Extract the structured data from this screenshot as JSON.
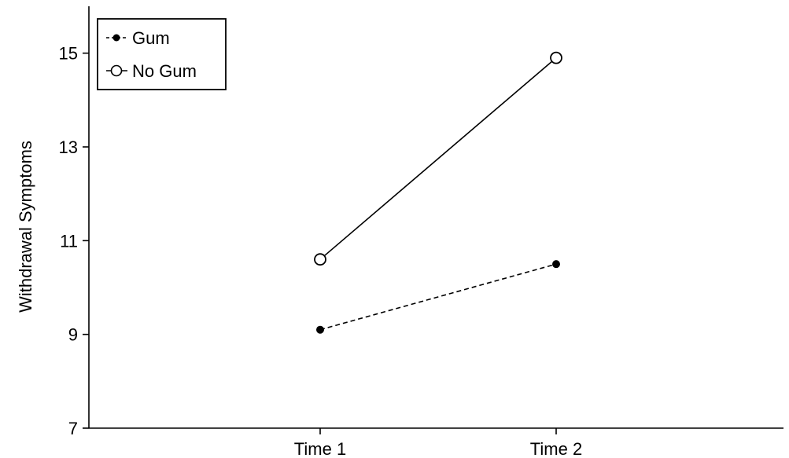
{
  "chart_data": {
    "type": "line",
    "title": "",
    "xlabel": "",
    "ylabel": "Withdrawal Symptoms",
    "categories": [
      "Time 1",
      "Time 2"
    ],
    "ylim": [
      7,
      16
    ],
    "yticks": [
      7,
      9,
      11,
      13,
      15
    ],
    "grid": false,
    "legend_position": "top-left",
    "series": [
      {
        "name": "Gum",
        "values": [
          9.1,
          10.5
        ],
        "marker": "filled-circle",
        "line_style": "dashed",
        "color": "#000000"
      },
      {
        "name": "No Gum",
        "values": [
          10.6,
          14.9
        ],
        "marker": "open-circle",
        "line_style": "solid",
        "color": "#000000"
      }
    ]
  }
}
